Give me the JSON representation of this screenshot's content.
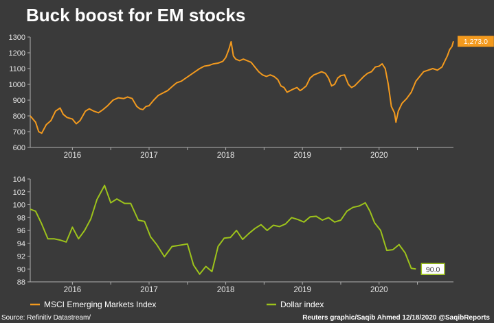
{
  "title": "Buck boost for EM stocks",
  "source": "Source: Refinitiv Datastream/",
  "credit": "Reuters graphic/Saqib Ahmed 12/18/2020 @SaqibReports",
  "colors": {
    "background": "#3a3a3a",
    "em": "#f39a1e",
    "dollar": "#9dc31b",
    "axis": "#b0b0b0"
  },
  "chart_data": [
    {
      "type": "line",
      "series": [
        {
          "name": "MSCI Emerging Markets Index",
          "end_label": "1,273.0",
          "color": "#f39a1e",
          "points": [
            [
              2015.45,
              800
            ],
            [
              2015.52,
              760
            ],
            [
              2015.56,
              700
            ],
            [
              2015.6,
              690
            ],
            [
              2015.66,
              745
            ],
            [
              2015.72,
              770
            ],
            [
              2015.78,
              830
            ],
            [
              2015.84,
              850
            ],
            [
              2015.88,
              810
            ],
            [
              2015.93,
              790
            ],
            [
              2016.0,
              780
            ],
            [
              2016.05,
              750
            ],
            [
              2016.1,
              770
            ],
            [
              2016.17,
              830
            ],
            [
              2016.22,
              845
            ],
            [
              2016.28,
              830
            ],
            [
              2016.34,
              820
            ],
            [
              2016.4,
              840
            ],
            [
              2016.46,
              865
            ],
            [
              2016.53,
              900
            ],
            [
              2016.6,
              915
            ],
            [
              2016.67,
              910
            ],
            [
              2016.72,
              920
            ],
            [
              2016.78,
              910
            ],
            [
              2016.84,
              860
            ],
            [
              2016.88,
              845
            ],
            [
              2016.92,
              840
            ],
            [
              2016.96,
              860
            ],
            [
              2017.0,
              865
            ],
            [
              2017.06,
              900
            ],
            [
              2017.12,
              930
            ],
            [
              2017.18,
              945
            ],
            [
              2017.24,
              960
            ],
            [
              2017.3,
              985
            ],
            [
              2017.36,
              1010
            ],
            [
              2017.42,
              1020
            ],
            [
              2017.48,
              1040
            ],
            [
              2017.54,
              1060
            ],
            [
              2017.6,
              1080
            ],
            [
              2017.66,
              1100
            ],
            [
              2017.72,
              1115
            ],
            [
              2017.78,
              1120
            ],
            [
              2017.84,
              1130
            ],
            [
              2017.9,
              1135
            ],
            [
              2017.96,
              1145
            ],
            [
              2018.0,
              1170
            ],
            [
              2018.04,
              1220
            ],
            [
              2018.07,
              1270
            ],
            [
              2018.1,
              1180
            ],
            [
              2018.13,
              1160
            ],
            [
              2018.18,
              1150
            ],
            [
              2018.23,
              1160
            ],
            [
              2018.28,
              1150
            ],
            [
              2018.33,
              1140
            ],
            [
              2018.38,
              1110
            ],
            [
              2018.43,
              1080
            ],
            [
              2018.48,
              1060
            ],
            [
              2018.53,
              1050
            ],
            [
              2018.58,
              1060
            ],
            [
              2018.63,
              1050
            ],
            [
              2018.68,
              1030
            ],
            [
              2018.72,
              990
            ],
            [
              2018.76,
              980
            ],
            [
              2018.8,
              950
            ],
            [
              2018.84,
              960
            ],
            [
              2018.88,
              970
            ],
            [
              2018.93,
              980
            ],
            [
              2018.97,
              960
            ],
            [
              2019.0,
              970
            ],
            [
              2019.05,
              990
            ],
            [
              2019.1,
              1040
            ],
            [
              2019.15,
              1060
            ],
            [
              2019.2,
              1070
            ],
            [
              2019.25,
              1080
            ],
            [
              2019.3,
              1070
            ],
            [
              2019.34,
              1040
            ],
            [
              2019.38,
              990
            ],
            [
              2019.42,
              1000
            ],
            [
              2019.46,
              1040
            ],
            [
              2019.5,
              1055
            ],
            [
              2019.55,
              1060
            ],
            [
              2019.6,
              1000
            ],
            [
              2019.64,
              980
            ],
            [
              2019.68,
              990
            ],
            [
              2019.72,
              1010
            ],
            [
              2019.76,
              1030
            ],
            [
              2019.8,
              1050
            ],
            [
              2019.85,
              1070
            ],
            [
              2019.9,
              1080
            ],
            [
              2019.95,
              1110
            ],
            [
              2020.0,
              1115
            ],
            [
              2020.04,
              1130
            ],
            [
              2020.08,
              1100
            ],
            [
              2020.12,
              1000
            ],
            [
              2020.16,
              860
            ],
            [
              2020.2,
              820
            ],
            [
              2020.22,
              760
            ],
            [
              2020.25,
              830
            ],
            [
              2020.3,
              880
            ],
            [
              2020.36,
              910
            ],
            [
              2020.42,
              950
            ],
            [
              2020.48,
              1020
            ],
            [
              2020.53,
              1050
            ],
            [
              2020.58,
              1080
            ],
            [
              2020.64,
              1090
            ],
            [
              2020.7,
              1100
            ],
            [
              2020.76,
              1090
            ],
            [
              2020.82,
              1110
            ],
            [
              2020.86,
              1150
            ],
            [
              2020.89,
              1180
            ],
            [
              2020.92,
              1220
            ],
            [
              2020.95,
              1240
            ],
            [
              2020.97,
              1273
            ]
          ]
        }
      ],
      "y_ticks": [
        600,
        700,
        800,
        900,
        1000,
        1100,
        1200,
        1300
      ],
      "ylim": [
        600,
        1300
      ],
      "xlim": [
        2015.45,
        2020.97
      ],
      "x_ticks": [
        {
          "label": "2016",
          "value": 2016.0
        },
        {
          "label": "2017",
          "value": 2017.0
        },
        {
          "label": "2018",
          "value": 2018.0
        },
        {
          "label": "2019",
          "value": 2019.0
        },
        {
          "label": "2020",
          "value": 2020.0
        }
      ]
    },
    {
      "type": "line",
      "series": [
        {
          "name": "Dollar index",
          "end_label": "90.0",
          "color": "#9dc31b",
          "points": [
            [
              2015.45,
              99.3
            ],
            [
              2015.52,
              99.0
            ],
            [
              2015.6,
              97.0
            ],
            [
              2015.68,
              94.7
            ],
            [
              2015.76,
              94.7
            ],
            [
              2015.84,
              94.5
            ],
            [
              2015.92,
              94.2
            ],
            [
              2016.0,
              96.5
            ],
            [
              2016.08,
              94.7
            ],
            [
              2016.16,
              96.0
            ],
            [
              2016.24,
              97.8
            ],
            [
              2016.32,
              100.8
            ],
            [
              2016.42,
              103.0
            ],
            [
              2016.5,
              100.3
            ],
            [
              2016.58,
              100.9
            ],
            [
              2016.68,
              100.2
            ],
            [
              2016.76,
              100.2
            ],
            [
              2016.86,
              97.6
            ],
            [
              2016.94,
              97.4
            ],
            [
              2017.02,
              95.0
            ],
            [
              2017.1,
              93.8
            ],
            [
              2017.2,
              91.9
            ],
            [
              2017.3,
              93.5
            ],
            [
              2017.4,
              93.7
            ],
            [
              2017.5,
              93.9
            ],
            [
              2017.58,
              90.6
            ],
            [
              2017.66,
              89.2
            ],
            [
              2017.74,
              90.4
            ],
            [
              2017.82,
              89.6
            ],
            [
              2017.9,
              93.5
            ],
            [
              2017.98,
              94.8
            ],
            [
              2018.06,
              94.9
            ],
            [
              2018.14,
              96.0
            ],
            [
              2018.22,
              94.6
            ],
            [
              2018.3,
              95.5
            ],
            [
              2018.38,
              96.3
            ],
            [
              2018.46,
              96.9
            ],
            [
              2018.54,
              96.0
            ],
            [
              2018.62,
              96.8
            ],
            [
              2018.7,
              96.6
            ],
            [
              2018.78,
              97.0
            ],
            [
              2018.86,
              98.0
            ],
            [
              2018.94,
              97.7
            ],
            [
              2019.02,
              97.3
            ],
            [
              2019.1,
              98.1
            ],
            [
              2019.18,
              98.2
            ],
            [
              2019.26,
              97.6
            ],
            [
              2019.34,
              98.0
            ],
            [
              2019.42,
              97.3
            ],
            [
              2019.5,
              97.6
            ],
            [
              2019.58,
              99.0
            ],
            [
              2019.66,
              99.6
            ],
            [
              2019.74,
              99.8
            ],
            [
              2019.82,
              100.3
            ],
            [
              2019.88,
              99.0
            ],
            [
              2019.94,
              97.2
            ],
            [
              2020.02,
              96.0
            ],
            [
              2020.1,
              92.9
            ],
            [
              2020.18,
              93.0
            ],
            [
              2020.26,
              93.8
            ],
            [
              2020.34,
              92.5
            ],
            [
              2020.42,
              90.1
            ],
            [
              2020.48,
              90.0
            ]
          ]
        }
      ],
      "y_ticks": [
        88,
        90,
        92,
        94,
        96,
        98,
        100,
        102,
        104
      ],
      "ylim": [
        88,
        104
      ],
      "xlim": [
        2015.45,
        2020.48
      ],
      "x_ticks": [
        {
          "label": "2016",
          "value": 2016.0
        },
        {
          "label": "2017",
          "value": 2017.0
        },
        {
          "label": "2018",
          "value": 2018.0
        },
        {
          "label": "2019",
          "value": 2019.0
        },
        {
          "label": "2020",
          "value": 2020.0
        }
      ]
    }
  ],
  "legend": [
    {
      "label": "MSCI Emerging Markets Index",
      "color": "#f39a1e"
    },
    {
      "label": "Dollar index",
      "color": "#9dc31b"
    }
  ]
}
